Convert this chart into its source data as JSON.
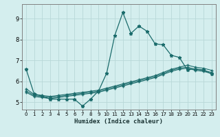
{
  "xlabel": "Humidex (Indice chaleur)",
  "bg_color": "#d4eeee",
  "grid_color": "#b8d8d8",
  "line_color": "#1a6b6b",
  "x_ticks": [
    0,
    1,
    2,
    3,
    4,
    5,
    6,
    7,
    8,
    9,
    10,
    11,
    12,
    13,
    14,
    15,
    16,
    17,
    18,
    19,
    20,
    21,
    22,
    23
  ],
  "y_ticks": [
    5,
    6,
    7,
    8,
    9
  ],
  "xlim": [
    -0.5,
    23.5
  ],
  "ylim": [
    4.65,
    9.7
  ],
  "line1_y": [
    6.6,
    5.4,
    5.3,
    5.15,
    5.15,
    5.15,
    5.15,
    4.82,
    5.15,
    5.55,
    6.4,
    8.2,
    9.3,
    8.3,
    8.65,
    8.4,
    7.8,
    7.75,
    7.25,
    7.15,
    6.55,
    6.6,
    6.55,
    6.35
  ],
  "line2_y": [
    5.65,
    5.38,
    5.33,
    5.28,
    5.33,
    5.38,
    5.43,
    5.48,
    5.53,
    5.58,
    5.68,
    5.78,
    5.88,
    5.98,
    6.08,
    6.18,
    6.28,
    6.43,
    6.58,
    6.68,
    6.78,
    6.68,
    6.63,
    6.53
  ],
  "line3_y": [
    5.55,
    5.33,
    5.28,
    5.23,
    5.28,
    5.33,
    5.38,
    5.43,
    5.48,
    5.53,
    5.63,
    5.73,
    5.83,
    5.93,
    6.03,
    6.13,
    6.23,
    6.38,
    6.53,
    6.63,
    6.68,
    6.58,
    6.53,
    6.43
  ],
  "line4_y": [
    5.48,
    5.28,
    5.23,
    5.18,
    5.23,
    5.28,
    5.33,
    5.38,
    5.43,
    5.48,
    5.58,
    5.68,
    5.78,
    5.88,
    5.98,
    6.08,
    6.18,
    6.33,
    6.48,
    6.58,
    6.63,
    6.53,
    6.48,
    6.38
  ]
}
